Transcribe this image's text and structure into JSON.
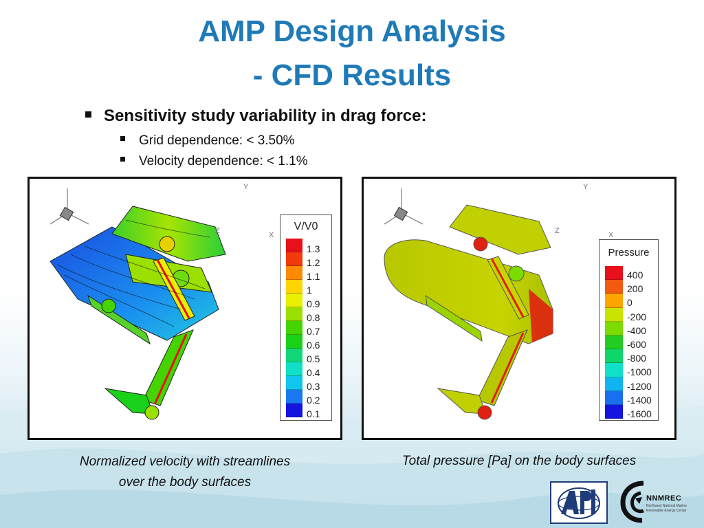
{
  "slide": {
    "title_line1": "AMP Design Analysis",
    "title_line2": "- CFD Results"
  },
  "bullets": {
    "main": "Sensitivity study variability in drag force:",
    "sub": [
      "Grid dependence: < 3.50%",
      "Velocity dependence: < 1.1%"
    ]
  },
  "panel_velocity": {
    "legend_title": "V/V0",
    "levels": [
      "1.3",
      "1.2",
      "1.1",
      "1",
      "0.9",
      "0.8",
      "0.7",
      "0.6",
      "0.5",
      "0.4",
      "0.3",
      "0.2",
      "0.1"
    ],
    "colors": [
      "#e8101a",
      "#f23a0c",
      "#ff8a00",
      "#ffd400",
      "#e8f000",
      "#9be000",
      "#44d400",
      "#1ad11a",
      "#12d77a",
      "#10e0c8",
      "#10c6ee",
      "#1a78f0",
      "#1414e0"
    ],
    "axes": {
      "y": "Y",
      "z": "Z",
      "x": "X"
    },
    "caption_line1": "Normalized velocity with streamlines",
    "caption_line2": "over the body surfaces"
  },
  "panel_pressure": {
    "legend_title": "Pressure",
    "levels": [
      "400",
      "200",
      "0",
      "-200",
      "-400",
      "-600",
      "-800",
      "-1000",
      "-1200",
      "-1400",
      "-1600"
    ],
    "colors": [
      "#e8101a",
      "#f25a10",
      "#ffa500",
      "#c8e400",
      "#7cdc00",
      "#22cc22",
      "#10d66a",
      "#10e0c8",
      "#10b4ee",
      "#1a6ef0",
      "#1414e0"
    ],
    "axes": {
      "y": "Y",
      "z": "Z",
      "x": "X"
    },
    "caption": "Total pressure [Pa] on the body surfaces"
  },
  "logos": {
    "left_icon": "apl-logo",
    "right_icon": "nnmrec-logo",
    "right_name": "NNMREC",
    "right_sub1": "Northwest National Marine",
    "right_sub2": "Renewable Energy Center"
  }
}
